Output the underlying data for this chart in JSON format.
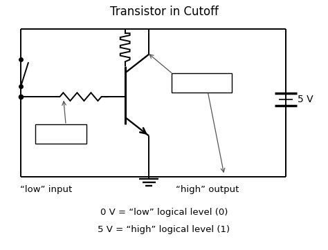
{
  "title": "Transistor in Cutoff",
  "background_color": "#ffffff",
  "line_color": "#000000",
  "text_color": "#000000",
  "title_fontsize": 12,
  "label_fontsize": 9.5,
  "bottom_text1": "0 V = “low” logical level (0)",
  "bottom_text2": "5 V = “high” logical level (1)",
  "label_low_input": "“low” input",
  "label_high_output": "“high” output",
  "v5_label": "5 V"
}
